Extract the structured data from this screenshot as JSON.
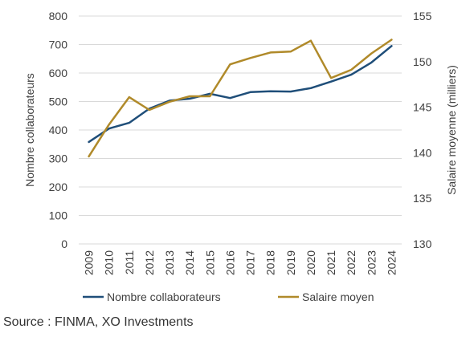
{
  "chart_data": {
    "type": "line",
    "x": [
      "2009",
      "2010",
      "2011",
      "2012",
      "2013",
      "2014",
      "2015",
      "2016",
      "2017",
      "2018",
      "2019",
      "2020",
      "2021",
      "2022",
      "2023",
      "2024"
    ],
    "ylabel_left": "Nombre collaborateurs",
    "ylabel_right": "Salaire moyenne (milliers)",
    "ylim_left": [
      0,
      800
    ],
    "ylim_right": [
      130,
      155
    ],
    "yticks_left": [
      "0",
      "100",
      "200",
      "300",
      "400",
      "500",
      "600",
      "700",
      "800"
    ],
    "yticks_right": [
      "130",
      "135",
      "140",
      "145",
      "150",
      "155"
    ],
    "grid": true,
    "legend_position": "bottom",
    "series": [
      {
        "name": "Nombre collaborateurs",
        "axis": "left",
        "color": "#1f4e79",
        "values": [
          358,
          405,
          425,
          475,
          503,
          510,
          527,
          512,
          533,
          536,
          535,
          547,
          570,
          594,
          637,
          695
        ]
      },
      {
        "name": "Salaire moyen",
        "axis": "right",
        "color": "#b08a2a",
        "values": [
          139.6,
          143.1,
          146.1,
          144.7,
          145.6,
          146.2,
          146.2,
          149.7,
          150.4,
          151.0,
          151.1,
          152.3,
          148.2,
          149.1,
          150.9,
          152.4
        ]
      }
    ]
  },
  "source": "Source : FINMA, XO Investments"
}
